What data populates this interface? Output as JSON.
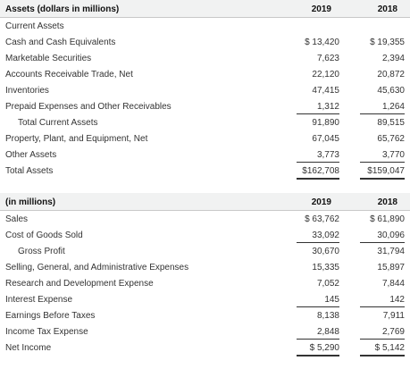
{
  "assets": {
    "header": {
      "label": "Assets (dollars in millions)",
      "y2019": "2019",
      "y2018": "2018"
    },
    "rows": [
      {
        "label": "Current Assets",
        "v2019": "",
        "v2018": ""
      },
      {
        "label": "Cash and Cash Equivalents",
        "v2019": "$ 13,420",
        "v2018": "$ 19,355"
      },
      {
        "label": "Marketable Securities",
        "v2019": "7,623",
        "v2018": "2,394"
      },
      {
        "label": "Accounts Receivable Trade, Net",
        "v2019": "22,120",
        "v2018": "20,872"
      },
      {
        "label": "Inventories",
        "v2019": "47,415",
        "v2018": "45,630"
      },
      {
        "label": "Prepaid Expenses and Other Receivables",
        "v2019": "1,312",
        "v2018": "1,264"
      },
      {
        "label": "Total Current Assets",
        "v2019": "91,890",
        "v2018": "89,515"
      },
      {
        "label": "Property, Plant, and Equipment, Net",
        "v2019": "67,045",
        "v2018": "65,762"
      },
      {
        "label": "Other Assets",
        "v2019": "3,773",
        "v2018": "3,770"
      },
      {
        "label": "Total Assets",
        "v2019": "$162,708",
        "v2018": "$159,047"
      }
    ]
  },
  "income": {
    "header": {
      "label": "(in millions)",
      "y2019": "2019",
      "y2018": "2018"
    },
    "rows": [
      {
        "label": "Sales",
        "v2019": "$ 63,762",
        "v2018": "$ 61,890"
      },
      {
        "label": "Cost of Goods Sold",
        "v2019": "33,092",
        "v2018": "30,096"
      },
      {
        "label": "Gross Profit",
        "v2019": "30,670",
        "v2018": "31,794"
      },
      {
        "label": "Selling, General, and Administrative Expenses",
        "v2019": "15,335",
        "v2018": "15,897"
      },
      {
        "label": "Research and Development Expense",
        "v2019": "7,052",
        "v2018": "7,844"
      },
      {
        "label": "Interest Expense",
        "v2019": "145",
        "v2018": "142"
      },
      {
        "label": "Earnings Before Taxes",
        "v2019": "8,138",
        "v2018": "7,911"
      },
      {
        "label": "Income Tax Expense",
        "v2019": "2,848",
        "v2018": "2,769"
      },
      {
        "label": "Net Income",
        "v2019": "$ 5,290",
        "v2018": "$ 5,142"
      }
    ]
  }
}
